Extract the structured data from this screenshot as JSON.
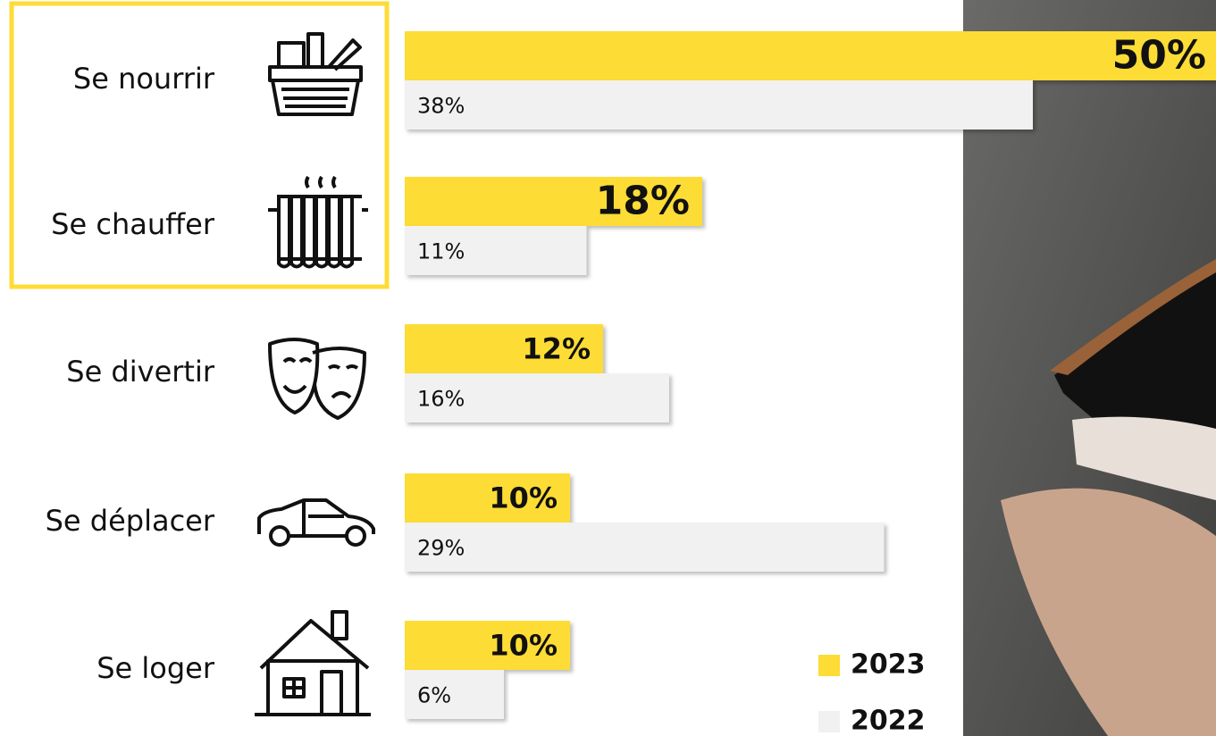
{
  "chart_data": {
    "type": "bar",
    "orientation": "horizontal",
    "categories": [
      "Se nourrir",
      "Se chauffer",
      "Se divertir",
      "Se déplacer",
      "Se loger"
    ],
    "series": [
      {
        "name": "2023",
        "color": "#fddc36",
        "values": [
          50,
          18,
          12,
          10,
          10
        ],
        "value_labels": [
          "50%",
          "18%",
          "12%",
          "10%",
          "10%"
        ]
      },
      {
        "name": "2022",
        "color": "#f1f1f1",
        "values": [
          38,
          11,
          16,
          29,
          6
        ],
        "value_labels": [
          "38%",
          "11%",
          "16%",
          "29%",
          "6%"
        ]
      }
    ]
  }
}
